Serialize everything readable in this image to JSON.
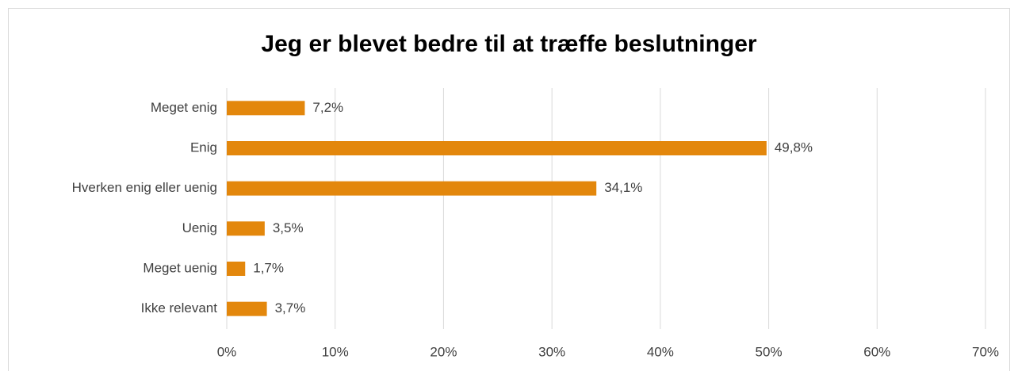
{
  "chart_data": {
    "type": "hbar",
    "title": "Jeg er blevet bedre til at træffe beslutninger",
    "categories": [
      "Meget enig",
      "Enig",
      "Hverken enig eller uenig",
      "Uenig",
      "Meget uenig",
      "Ikke relevant"
    ],
    "values": [
      7.2,
      49.8,
      34.1,
      3.5,
      1.7,
      3.7
    ],
    "value_labels": [
      "7,2%",
      "49,8%",
      "34,1%",
      "3,5%",
      "1,7%",
      "3,7%"
    ],
    "color": "#e3870c",
    "xlim": [
      0,
      70
    ],
    "xticks": [
      {
        "value": 0,
        "label": "0%"
      },
      {
        "value": 10,
        "label": "10%"
      },
      {
        "value": 20,
        "label": "20%"
      },
      {
        "value": 30,
        "label": "30%"
      },
      {
        "value": 40,
        "label": "40%"
      },
      {
        "value": 50,
        "label": "50%"
      },
      {
        "value": 60,
        "label": "60%"
      },
      {
        "value": 70,
        "label": "70%"
      }
    ],
    "grid": true
  }
}
